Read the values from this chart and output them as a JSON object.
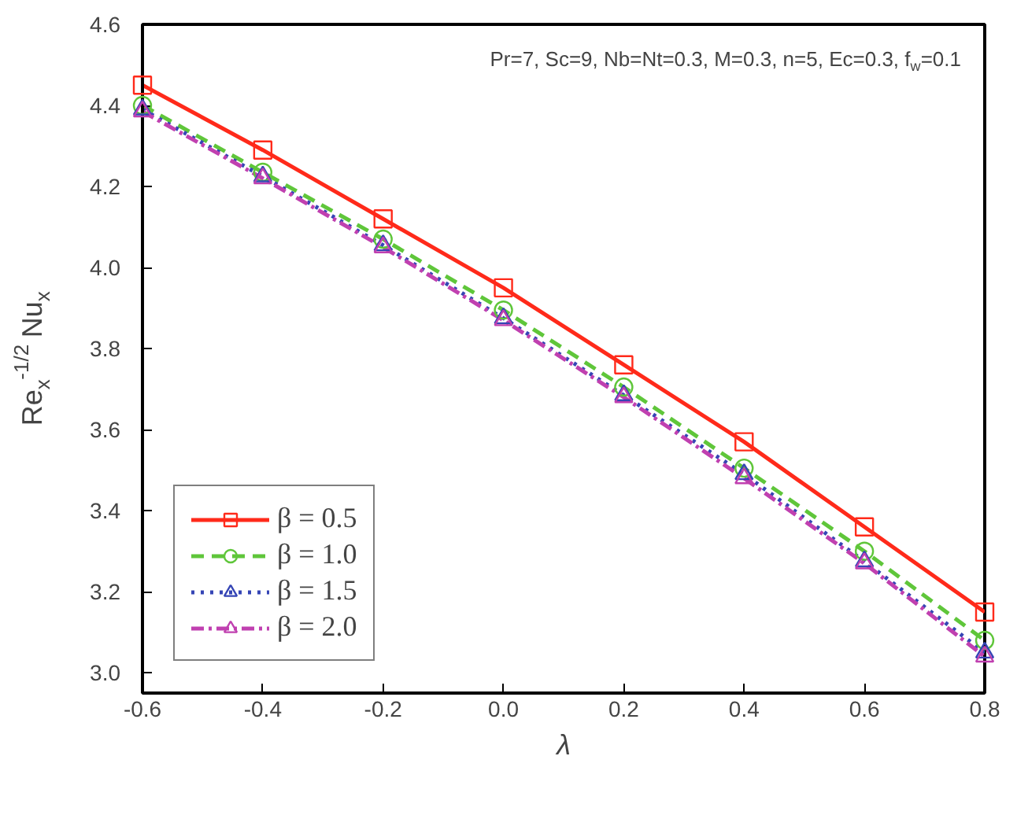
{
  "chart_data": {
    "type": "line",
    "xlabel": "λ",
    "ylabel": "Re$_{x}$$^{-1/2}$ Nu$_{x}$",
    "annotations": [
      "Pr=7, Sc=9, Nb=Nt=0.3, M=0.3, n=5, Ec=0.3, f$_{w}$=0.1"
    ],
    "x": [
      -0.6,
      -0.4,
      -0.2,
      0.0,
      0.2,
      0.4,
      0.6,
      0.8
    ],
    "series": [
      {
        "name": "β = 0.5",
        "color": "#ff2a1a",
        "marker": "square",
        "line_style": "solid",
        "values": [
          4.45,
          4.29,
          4.12,
          3.95,
          3.76,
          3.57,
          3.36,
          3.15
        ]
      },
      {
        "name": "β = 1.0",
        "color": "#5fc63a",
        "marker": "circle",
        "line_style": "dashed",
        "values": [
          4.4,
          4.235,
          4.07,
          3.895,
          3.705,
          3.505,
          3.3,
          3.08
        ]
      },
      {
        "name": "β = 1.5",
        "color": "#3545b5",
        "marker": "triangle",
        "line_style": "dotted",
        "values": [
          4.39,
          4.225,
          4.055,
          3.875,
          3.685,
          3.49,
          3.275,
          3.05
        ]
      },
      {
        "name": "β = 2.0",
        "color": "#c040b0",
        "marker": "triangle",
        "line_style": "dashdot",
        "values": [
          4.385,
          4.22,
          4.05,
          3.87,
          3.68,
          3.48,
          3.27,
          3.04
        ]
      }
    ],
    "xlim": [
      -0.6,
      0.8
    ],
    "ylim": [
      2.95,
      4.6
    ],
    "xticks": [
      {
        "value": -0.6,
        "label": "-0.6"
      },
      {
        "value": -0.4,
        "label": "-0.4"
      },
      {
        "value": -0.2,
        "label": "-0.2"
      },
      {
        "value": 0.0,
        "label": "0.0"
      },
      {
        "value": 0.2,
        "label": "0.2"
      },
      {
        "value": 0.4,
        "label": "0.4"
      },
      {
        "value": 0.6,
        "label": "0.6"
      },
      {
        "value": 0.8,
        "label": "0.8"
      }
    ],
    "yticks": [
      {
        "value": 3.0,
        "label": "3.0"
      },
      {
        "value": 3.2,
        "label": "3.2"
      },
      {
        "value": 3.4,
        "label": "3.4"
      },
      {
        "value": 3.6,
        "label": "3.6"
      },
      {
        "value": 3.8,
        "label": "3.8"
      },
      {
        "value": 4.0,
        "label": "4.0"
      },
      {
        "value": 4.2,
        "label": "4.2"
      },
      {
        "value": 4.4,
        "label": "4.4"
      },
      {
        "value": 4.6,
        "label": "4.6"
      }
    ],
    "grid": false,
    "legend": "bottom left"
  }
}
